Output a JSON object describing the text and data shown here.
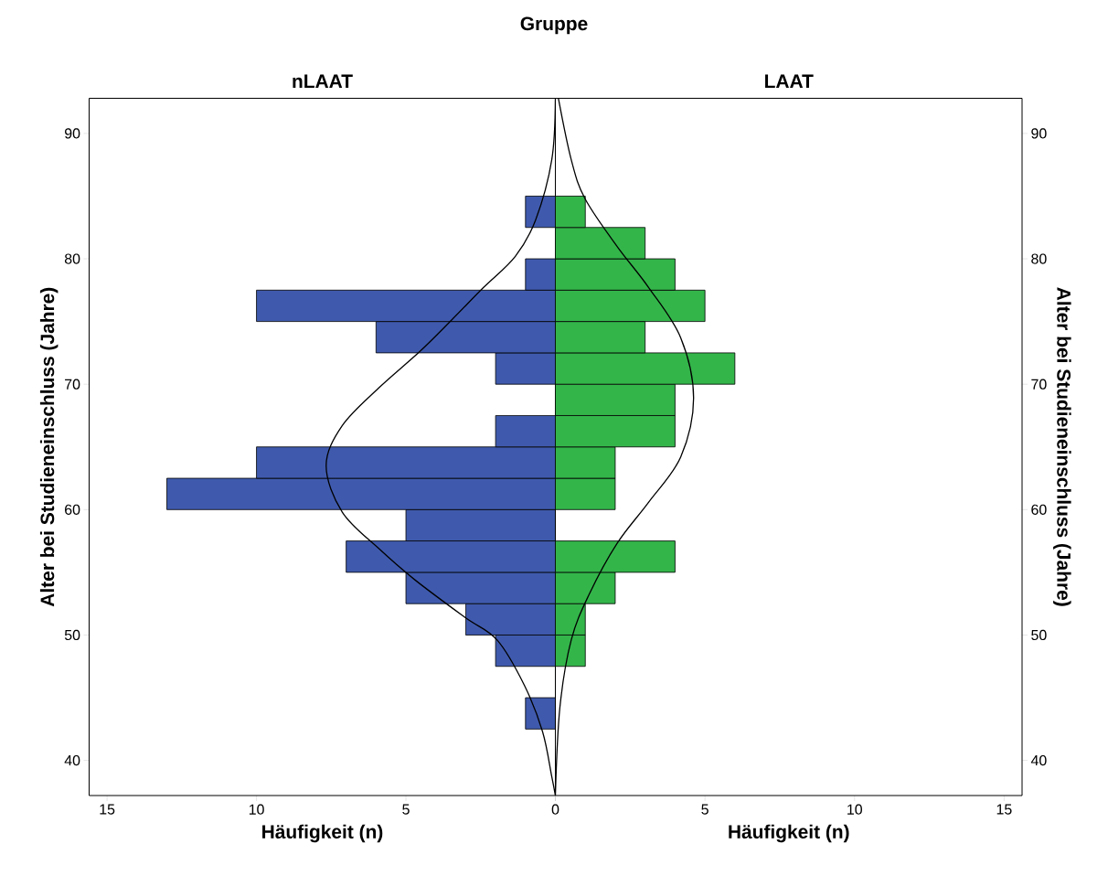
{
  "chart_data": [
    {
      "type": "histogram",
      "title": "nLAAT",
      "xlabel": "Häufigkeit (n)",
      "ylabel": "Alter bei Studieneinschluss (Jahre)",
      "annotations": [
        "Gruppe"
      ],
      "orientation": "horizontal",
      "bins": [
        42.5,
        45,
        47.5,
        50,
        52.5,
        55,
        57.5,
        60,
        62.5,
        65,
        67.5,
        70,
        72.5,
        75,
        77.5,
        80,
        82.5,
        85
      ],
      "series": [
        {
          "color": "#3f5aad",
          "values": [
            1,
            0,
            2,
            3,
            5,
            7,
            5,
            13,
            10,
            2,
            0,
            2,
            6,
            10,
            1,
            0,
            1
          ]
        },
        {
          "type": "line",
          "color": "#000000",
          "x": [
            37.2,
            38.7,
            42.3,
            46.0,
            49.6,
            51.4,
            54.4,
            56.9,
            59.8,
            63.5,
            66.7,
            69.7,
            72.6,
            75.1,
            77.7,
            80.2,
            83.1,
            87.9,
            92.8
          ],
          "values": [
            0,
            0.12,
            0.43,
            1.04,
            1.95,
            3.02,
            4.7,
            5.91,
            7.13,
            7.67,
            7.13,
            5.91,
            4.54,
            3.48,
            2.41,
            1.34,
            0.66,
            0.12,
            0
          ]
        }
      ],
      "xlim": [
        15.6,
        0
      ],
      "xticks": [
        {
          "value": 0,
          "label": null
        },
        5,
        10,
        15
      ],
      "ylim": [
        37.2,
        92.8
      ],
      "yticks": [
        40,
        50,
        60,
        70,
        80,
        90
      ]
    },
    {
      "type": "histogram",
      "title": "LAAT",
      "xlabel": "Häufigkeit (n)",
      "ylabel": "Alter bei Studieneinschluss (Jahre)",
      "orientation": "horizontal",
      "bins": [
        42.5,
        45,
        47.5,
        50,
        52.5,
        55,
        57.5,
        60,
        62.5,
        65,
        67.5,
        70,
        72.5,
        75,
        77.5,
        80,
        82.5,
        85
      ],
      "series": [
        {
          "color": "#33b54a",
          "values": [
            0,
            0,
            1,
            1,
            2,
            4,
            0,
            2,
            2,
            4,
            4,
            6,
            3,
            5,
            4,
            3,
            1
          ]
        },
        {
          "type": "line",
          "color": "#000000",
          "x": [
            37.2,
            44.2,
            49.6,
            53.3,
            57.3,
            60.6,
            64.2,
            68.9,
            73.7,
            77.7,
            81.0,
            84.8,
            87.9,
            92.8
          ],
          "values": [
            0,
            0.15,
            0.53,
            1.14,
            2.06,
            3.12,
            4.19,
            4.62,
            4.19,
            3.12,
            2.06,
            0.99,
            0.53,
            0.1
          ]
        }
      ],
      "xlim": [
        0,
        15.6
      ],
      "xticks": [
        0,
        5,
        10,
        15
      ],
      "ylim": [
        37.2,
        92.8
      ],
      "yticks": [
        40,
        50,
        60,
        70,
        80,
        90
      ]
    }
  ]
}
